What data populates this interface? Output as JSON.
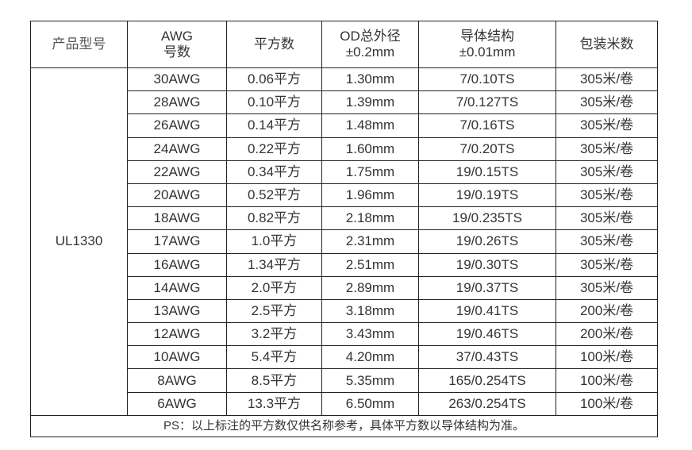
{
  "header": {
    "model": "产品型号",
    "awg_line1": "AWG",
    "awg_line2": "号数",
    "area": "平方数",
    "od_line1": "OD总外径",
    "od_line2": "±0.2mm",
    "conductor_line1": "导体结构",
    "conductor_line2": "±0.01mm",
    "packing": "包装米数"
  },
  "model": "UL1330",
  "rows": [
    {
      "awg": "30AWG",
      "area": "0.06平方",
      "od": "1.30mm",
      "conductor": "7/0.10TS",
      "packing": "305米/卷"
    },
    {
      "awg": "28AWG",
      "area": "0.10平方",
      "od": "1.39mm",
      "conductor": "7/0.127TS",
      "packing": "305米/卷"
    },
    {
      "awg": "26AWG",
      "area": "0.14平方",
      "od": "1.48mm",
      "conductor": "7/0.16TS",
      "packing": "305米/卷"
    },
    {
      "awg": "24AWG",
      "area": "0.22平方",
      "od": "1.60mm",
      "conductor": "7/0.20TS",
      "packing": "305米/卷"
    },
    {
      "awg": "22AWG",
      "area": "0.34平方",
      "od": "1.75mm",
      "conductor": "19/0.15TS",
      "packing": "305米/卷"
    },
    {
      "awg": "20AWG",
      "area": "0.52平方",
      "od": "1.96mm",
      "conductor": "19/0.19TS",
      "packing": "305米/卷"
    },
    {
      "awg": "18AWG",
      "area": "0.82平方",
      "od": "2.18mm",
      "conductor": "19/0.235TS",
      "packing": "305米/卷"
    },
    {
      "awg": "17AWG",
      "area": "1.0平方",
      "od": "2.31mm",
      "conductor": "19/0.26TS",
      "packing": "305米/卷"
    },
    {
      "awg": "16AWG",
      "area": "1.34平方",
      "od": "2.51mm",
      "conductor": "19/0.30TS",
      "packing": "305米/卷"
    },
    {
      "awg": "14AWG",
      "area": "2.0平方",
      "od": "2.89mm",
      "conductor": "19/0.37TS",
      "packing": "305米/卷"
    },
    {
      "awg": "13AWG",
      "area": "2.5平方",
      "od": "3.18mm",
      "conductor": "19/0.41TS",
      "packing": "200米/卷"
    },
    {
      "awg": "12AWG",
      "area": "3.2平方",
      "od": "3.43mm",
      "conductor": "19/0.46TS",
      "packing": "200米/卷"
    },
    {
      "awg": "10AWG",
      "area": "5.4平方",
      "od": "4.20mm",
      "conductor": "37/0.43TS",
      "packing": "100米/卷"
    },
    {
      "awg": "8AWG",
      "area": "8.5平方",
      "od": "5.35mm",
      "conductor": "165/0.254TS",
      "packing": "100米/卷"
    },
    {
      "awg": "6AWG",
      "area": "13.3平方",
      "od": "6.50mm",
      "conductor": "263/0.254TS",
      "packing": "100米/卷"
    }
  ],
  "note": "PS：以上标注的平方数仅供名称参考，具体平方数以导体结构为准。"
}
